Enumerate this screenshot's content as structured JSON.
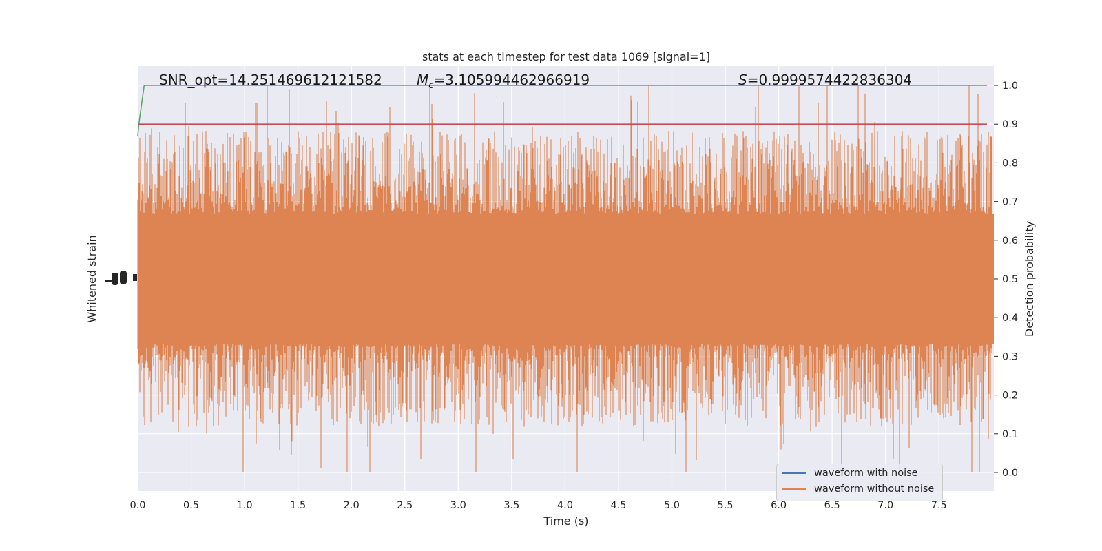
{
  "chart_data": {
    "type": "line",
    "title": "stats at each timestep for test data 1069 [signal=1]",
    "xlabel": "Time (s)",
    "ylabel_left": "Whitened strain",
    "ylabel_right": "Detection probability",
    "xlim": [
      0,
      8.0
    ],
    "ylim_right": [
      -0.05,
      1.05
    ],
    "x_ticks": [
      "0.0",
      "0.5",
      "1.0",
      "1.5",
      "2.0",
      "2.5",
      "3.0",
      "3.5",
      "4.0",
      "4.5",
      "5.0",
      "5.5",
      "6.0",
      "6.5",
      "7.0",
      "7.5"
    ],
    "y_ticks_right": [
      "0.0",
      "0.1",
      "0.2",
      "0.3",
      "0.4",
      "0.5",
      "0.6",
      "0.7",
      "0.8",
      "0.9",
      "1.0"
    ],
    "annotations": {
      "snr": "SNR_opt=14.251469612121582",
      "mc_symbol": "M",
      "mc_sub": "c",
      "mc_value": "=3.105994462966919",
      "s_symbol": "S",
      "s_value": "=0.9999574422836304"
    },
    "series": [
      {
        "name": "waveform with noise",
        "color": "#4c72b0",
        "note_values": "noise band, hidden beneath orange"
      },
      {
        "name": "waveform without noise",
        "color": "#dd8452"
      },
      {
        "color": "#55a868",
        "x": [
          0.0,
          0.01,
          0.06,
          7.95
        ],
        "y": [
          0.87,
          0.9,
          1.0,
          1.0
        ]
      },
      {
        "color": "#c44e52",
        "x": [
          0.0,
          7.95
        ],
        "y": [
          0.9,
          0.9
        ]
      }
    ],
    "grid": true,
    "legend_position": "lower right"
  },
  "colors": {
    "axes_bg": "#eaeaf2",
    "grid": "#ffffff",
    "noise": "#4c72b0",
    "clean": "#dd8452",
    "prob": "#55a868",
    "threshold": "#c44e52"
  }
}
